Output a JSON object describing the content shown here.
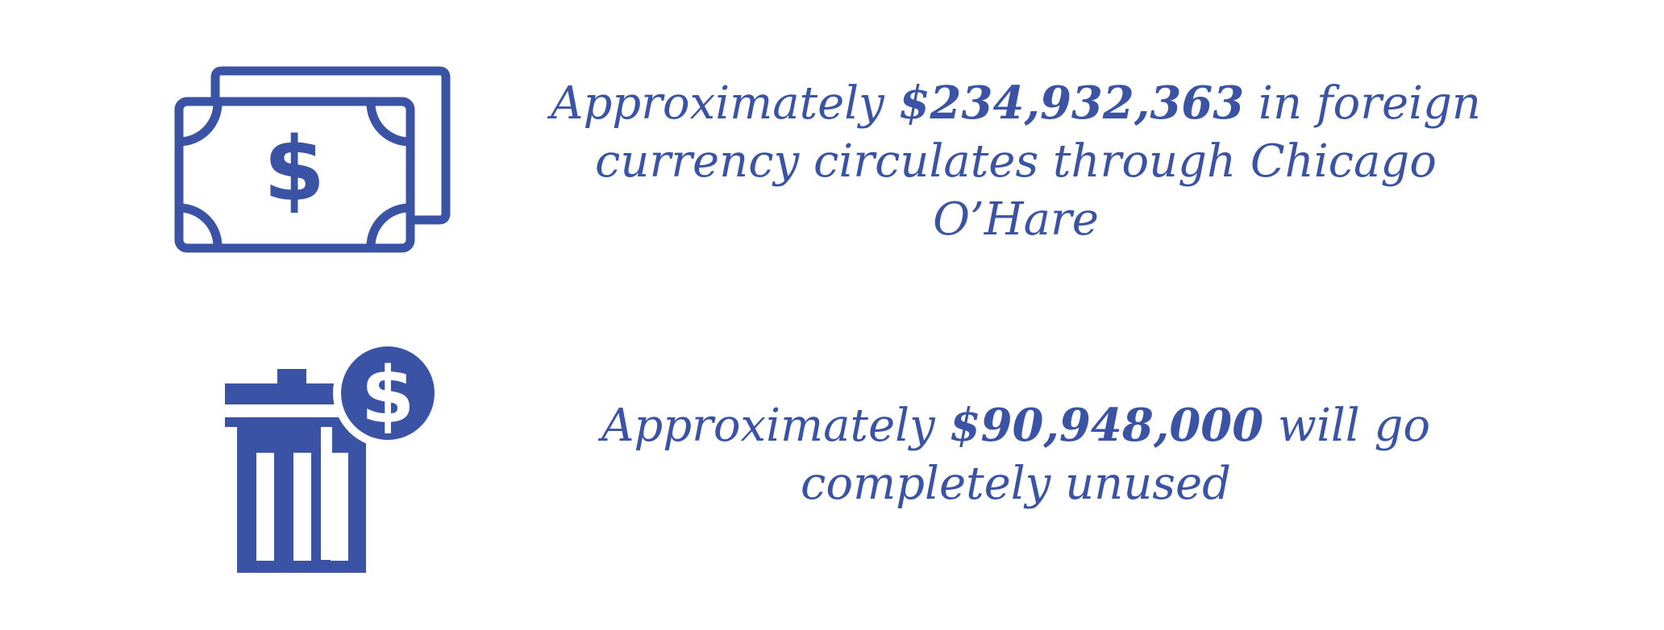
{
  "colors": {
    "accent": "#3a53a4",
    "background": "#ffffff"
  },
  "stats": [
    {
      "icon": "banknotes-dollar-icon",
      "prefix": "Approximately ",
      "amount": "$234,932,363",
      "suffix_line1": " in foreign",
      "line2": "currency circulates through Chicago",
      "line3": "O’Hare"
    },
    {
      "icon": "trash-can-dollar-icon",
      "prefix": "Approximately ",
      "amount": "$90,948,000",
      "suffix_line1": " will go",
      "line2": "completely unused"
    }
  ]
}
